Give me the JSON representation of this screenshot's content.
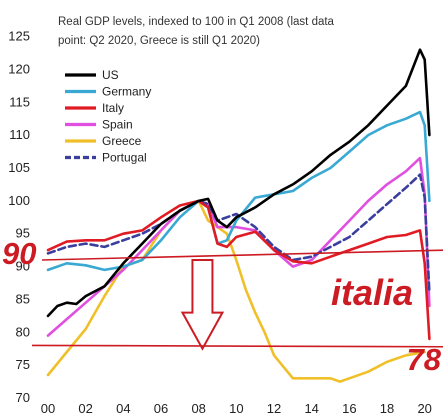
{
  "chart_data": {
    "type": "line",
    "title_line1": "Real GDP levels, indexed to 100 in Q1 2008  (last data",
    "title_line2": "point: Q2 2020,  Greece is still Q1 2020)",
    "xlabel": "",
    "ylabel": "",
    "x_ticks": [
      "00",
      "02",
      "04",
      "06",
      "08",
      "10",
      "12",
      "14",
      "16",
      "18",
      "20"
    ],
    "y_ticks": [
      70,
      75,
      80,
      85,
      90,
      95,
      100,
      105,
      110,
      115,
      120,
      125
    ],
    "xlim": [
      2000,
      2020.6
    ],
    "ylim": [
      70,
      126
    ],
    "grid": false,
    "legend_position": "top-left",
    "series": [
      {
        "name": "US",
        "color": "#000000",
        "dash": false,
        "points": [
          [
            2000,
            82.5
          ],
          [
            2000.5,
            84
          ],
          [
            2001,
            84.5
          ],
          [
            2001.5,
            84.3
          ],
          [
            2002,
            85.5
          ],
          [
            2003,
            87
          ],
          [
            2004,
            90.5
          ],
          [
            2005,
            93.5
          ],
          [
            2006,
            96.5
          ],
          [
            2007,
            98.5
          ],
          [
            2008,
            100
          ],
          [
            2008.5,
            100.3
          ],
          [
            2009,
            97
          ],
          [
            2009.5,
            96
          ],
          [
            2010,
            97.5
          ],
          [
            2011,
            99
          ],
          [
            2012,
            101
          ],
          [
            2013,
            102.5
          ],
          [
            2014,
            104.5
          ],
          [
            2015,
            107
          ],
          [
            2016,
            109
          ],
          [
            2017,
            111.5
          ],
          [
            2018,
            114.5
          ],
          [
            2019,
            117.5
          ],
          [
            2019.75,
            123
          ],
          [
            2020,
            121.5
          ],
          [
            2020.25,
            110
          ]
        ]
      },
      {
        "name": "Germany",
        "color": "#39a9d4",
        "dash": false,
        "points": [
          [
            2000,
            89.5
          ],
          [
            2001,
            90.5
          ],
          [
            2002,
            90.2
          ],
          [
            2003,
            89.5
          ],
          [
            2004,
            90
          ],
          [
            2005,
            91
          ],
          [
            2006,
            94
          ],
          [
            2007,
            97.5
          ],
          [
            2008,
            100
          ],
          [
            2008.5,
            99
          ],
          [
            2009,
            93.5
          ],
          [
            2009.5,
            94
          ],
          [
            2010,
            97
          ],
          [
            2011,
            100.5
          ],
          [
            2012,
            101
          ],
          [
            2013,
            101.5
          ],
          [
            2014,
            103.5
          ],
          [
            2015,
            105
          ],
          [
            2016,
            107.5
          ],
          [
            2017,
            110
          ],
          [
            2018,
            111.5
          ],
          [
            2019,
            112.5
          ],
          [
            2019.75,
            113.5
          ],
          [
            2020,
            111.5
          ],
          [
            2020.25,
            100
          ]
        ]
      },
      {
        "name": "Italy",
        "color": "#e01b24",
        "dash": false,
        "points": [
          [
            2000,
            92.5
          ],
          [
            2001,
            93.8
          ],
          [
            2002,
            94
          ],
          [
            2003,
            94
          ],
          [
            2004,
            95
          ],
          [
            2005,
            95.5
          ],
          [
            2006,
            97.5
          ],
          [
            2007,
            99.3
          ],
          [
            2008,
            100
          ],
          [
            2008.5,
            99
          ],
          [
            2009,
            93.5
          ],
          [
            2009.5,
            93
          ],
          [
            2010,
            94.5
          ],
          [
            2011,
            95.3
          ],
          [
            2012,
            92.5
          ],
          [
            2013,
            90.8
          ],
          [
            2014,
            90.5
          ],
          [
            2015,
            91.5
          ],
          [
            2016,
            92.5
          ],
          [
            2017,
            93.5
          ],
          [
            2018,
            94.5
          ],
          [
            2019,
            94.8
          ],
          [
            2019.75,
            95.5
          ],
          [
            2020,
            90.5
          ],
          [
            2020.25,
            79
          ]
        ]
      },
      {
        "name": "Spain",
        "color": "#e04fe0",
        "dash": false,
        "points": [
          [
            2000,
            79.5
          ],
          [
            2001,
            82
          ],
          [
            2002,
            84.5
          ],
          [
            2003,
            87
          ],
          [
            2004,
            89.5
          ],
          [
            2005,
            92.5
          ],
          [
            2006,
            95.5
          ],
          [
            2007,
            98.5
          ],
          [
            2008,
            100
          ],
          [
            2008.5,
            99.5
          ],
          [
            2009,
            96
          ],
          [
            2010,
            96
          ],
          [
            2011,
            95.5
          ],
          [
            2012,
            92.5
          ],
          [
            2013,
            90
          ],
          [
            2014,
            91
          ],
          [
            2015,
            94
          ],
          [
            2016,
            97
          ],
          [
            2017,
            100
          ],
          [
            2018,
            102.5
          ],
          [
            2019,
            104.5
          ],
          [
            2019.75,
            106.5
          ],
          [
            2020,
            101
          ],
          [
            2020.25,
            84
          ]
        ]
      },
      {
        "name": "Greece",
        "color": "#f0c02a",
        "dash": false,
        "points": [
          [
            2000,
            73.5
          ],
          [
            2001,
            77
          ],
          [
            2002,
            80.5
          ],
          [
            2003,
            85.5
          ],
          [
            2004,
            90
          ],
          [
            2005,
            91
          ],
          [
            2006,
            95.5
          ],
          [
            2007,
            98.5
          ],
          [
            2008,
            100
          ],
          [
            2008.5,
            97
          ],
          [
            2009,
            96
          ],
          [
            2009.5,
            95
          ],
          [
            2010,
            91
          ],
          [
            2010.5,
            86.5
          ],
          [
            2011,
            83
          ],
          [
            2011.5,
            80
          ],
          [
            2012,
            76.5
          ],
          [
            2013,
            73
          ],
          [
            2014,
            73
          ],
          [
            2015,
            73
          ],
          [
            2015.5,
            72.5
          ],
          [
            2016,
            73
          ],
          [
            2017,
            74
          ],
          [
            2018,
            75.5
          ],
          [
            2019,
            76.5
          ],
          [
            2020,
            77
          ]
        ]
      },
      {
        "name": "Portugal",
        "color": "#3a3f9e",
        "dash": true,
        "points": [
          [
            2000,
            92
          ],
          [
            2001,
            93
          ],
          [
            2002,
            93.5
          ],
          [
            2003,
            93
          ],
          [
            2004,
            94
          ],
          [
            2005,
            95
          ],
          [
            2006,
            96.5
          ],
          [
            2007,
            98.5
          ],
          [
            2008,
            100
          ],
          [
            2008.5,
            99.5
          ],
          [
            2009,
            97
          ],
          [
            2010,
            98
          ],
          [
            2011,
            96
          ],
          [
            2012,
            93
          ],
          [
            2013,
            91
          ],
          [
            2014,
            91.5
          ],
          [
            2015,
            93
          ],
          [
            2016,
            94.5
          ],
          [
            2017,
            97
          ],
          [
            2018,
            99.5
          ],
          [
            2019,
            102
          ],
          [
            2019.75,
            104
          ],
          [
            2020,
            100.5
          ],
          [
            2020.25,
            86
          ]
        ]
      }
    ],
    "annotations": {
      "level_90": 90,
      "level_78": 78,
      "label_left": "90",
      "label_right": "78",
      "label_text": "italia",
      "color": "#cc1b23"
    }
  }
}
